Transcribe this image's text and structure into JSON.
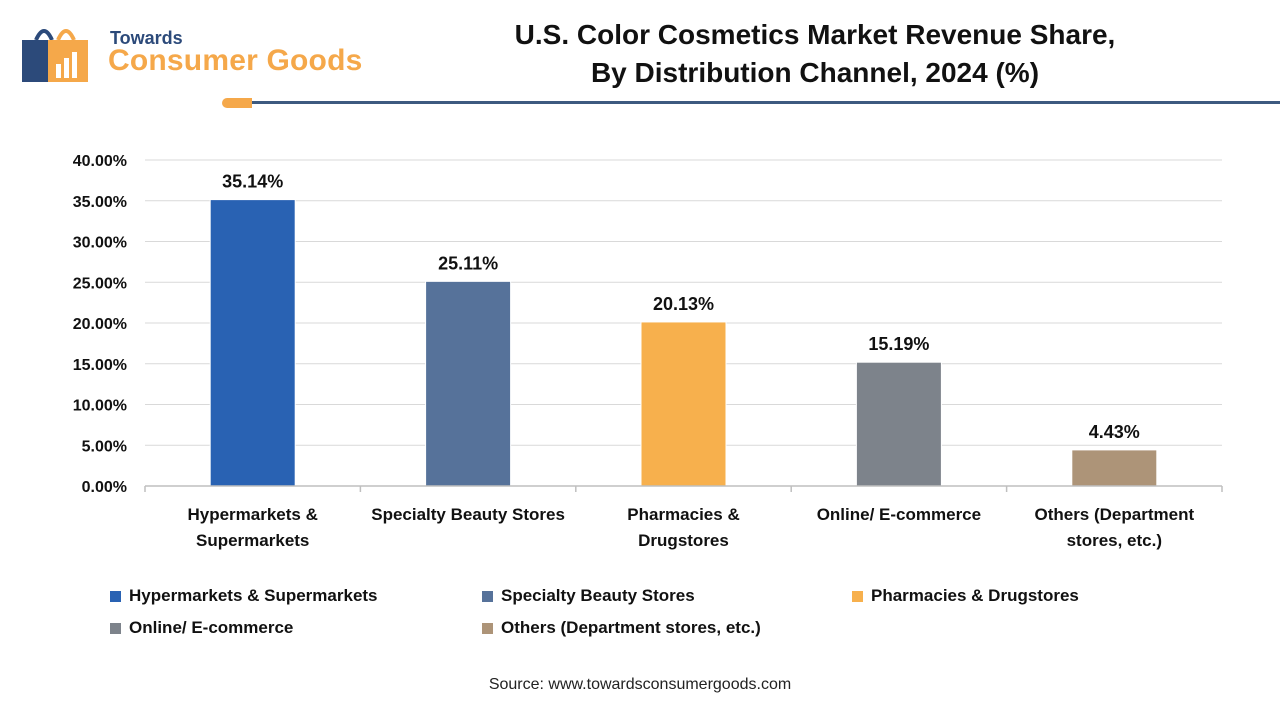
{
  "logo": {
    "top": "Towards",
    "main": "Consumer Goods"
  },
  "header": {
    "title_line1": "U.S. Color Cosmetics Market Revenue Share,",
    "title_line2": "By Distribution Channel, 2024 (%)"
  },
  "chart_data": {
    "type": "bar",
    "title": "U.S. Color Cosmetics Market Revenue Share, By Distribution Channel, 2024 (%)",
    "xlabel": "",
    "ylabel": "",
    "ylim": [
      0,
      40
    ],
    "yticks": [
      0,
      5,
      10,
      15,
      20,
      25,
      30,
      35,
      40
    ],
    "ytick_labels": [
      "0.00%",
      "5.00%",
      "10.00%",
      "15.00%",
      "20.00%",
      "25.00%",
      "30.00%",
      "35.00%",
      "40.00%"
    ],
    "categories": [
      {
        "line1": "Hypermarkets &",
        "line2": "Supermarkets"
      },
      {
        "line1": "Specialty Beauty Stores",
        "line2": ""
      },
      {
        "line1": "Pharmacies &",
        "line2": "Drugstores"
      },
      {
        "line1": "Online/ E-commerce",
        "line2": ""
      },
      {
        "line1": "Others (Department",
        "line2": "stores, etc.)"
      }
    ],
    "values": [
      35.14,
      25.11,
      20.13,
      15.19,
      4.43
    ],
    "value_labels": [
      "35.14%",
      "25.11%",
      "20.13%",
      "15.19%",
      "4.43%"
    ],
    "colors": [
      "#2962b3",
      "#56729a",
      "#f7b04d",
      "#7d838b",
      "#ad9478"
    ],
    "grid": true,
    "legend_position": "bottom",
    "legend": [
      "Hypermarkets & Supermarkets",
      "Specialty Beauty Stores",
      "Pharmacies & Drugstores",
      "Online/ E-commerce",
      "Others (Department stores, etc.)"
    ]
  },
  "source": "Source: www.towardsconsumergoods.com"
}
